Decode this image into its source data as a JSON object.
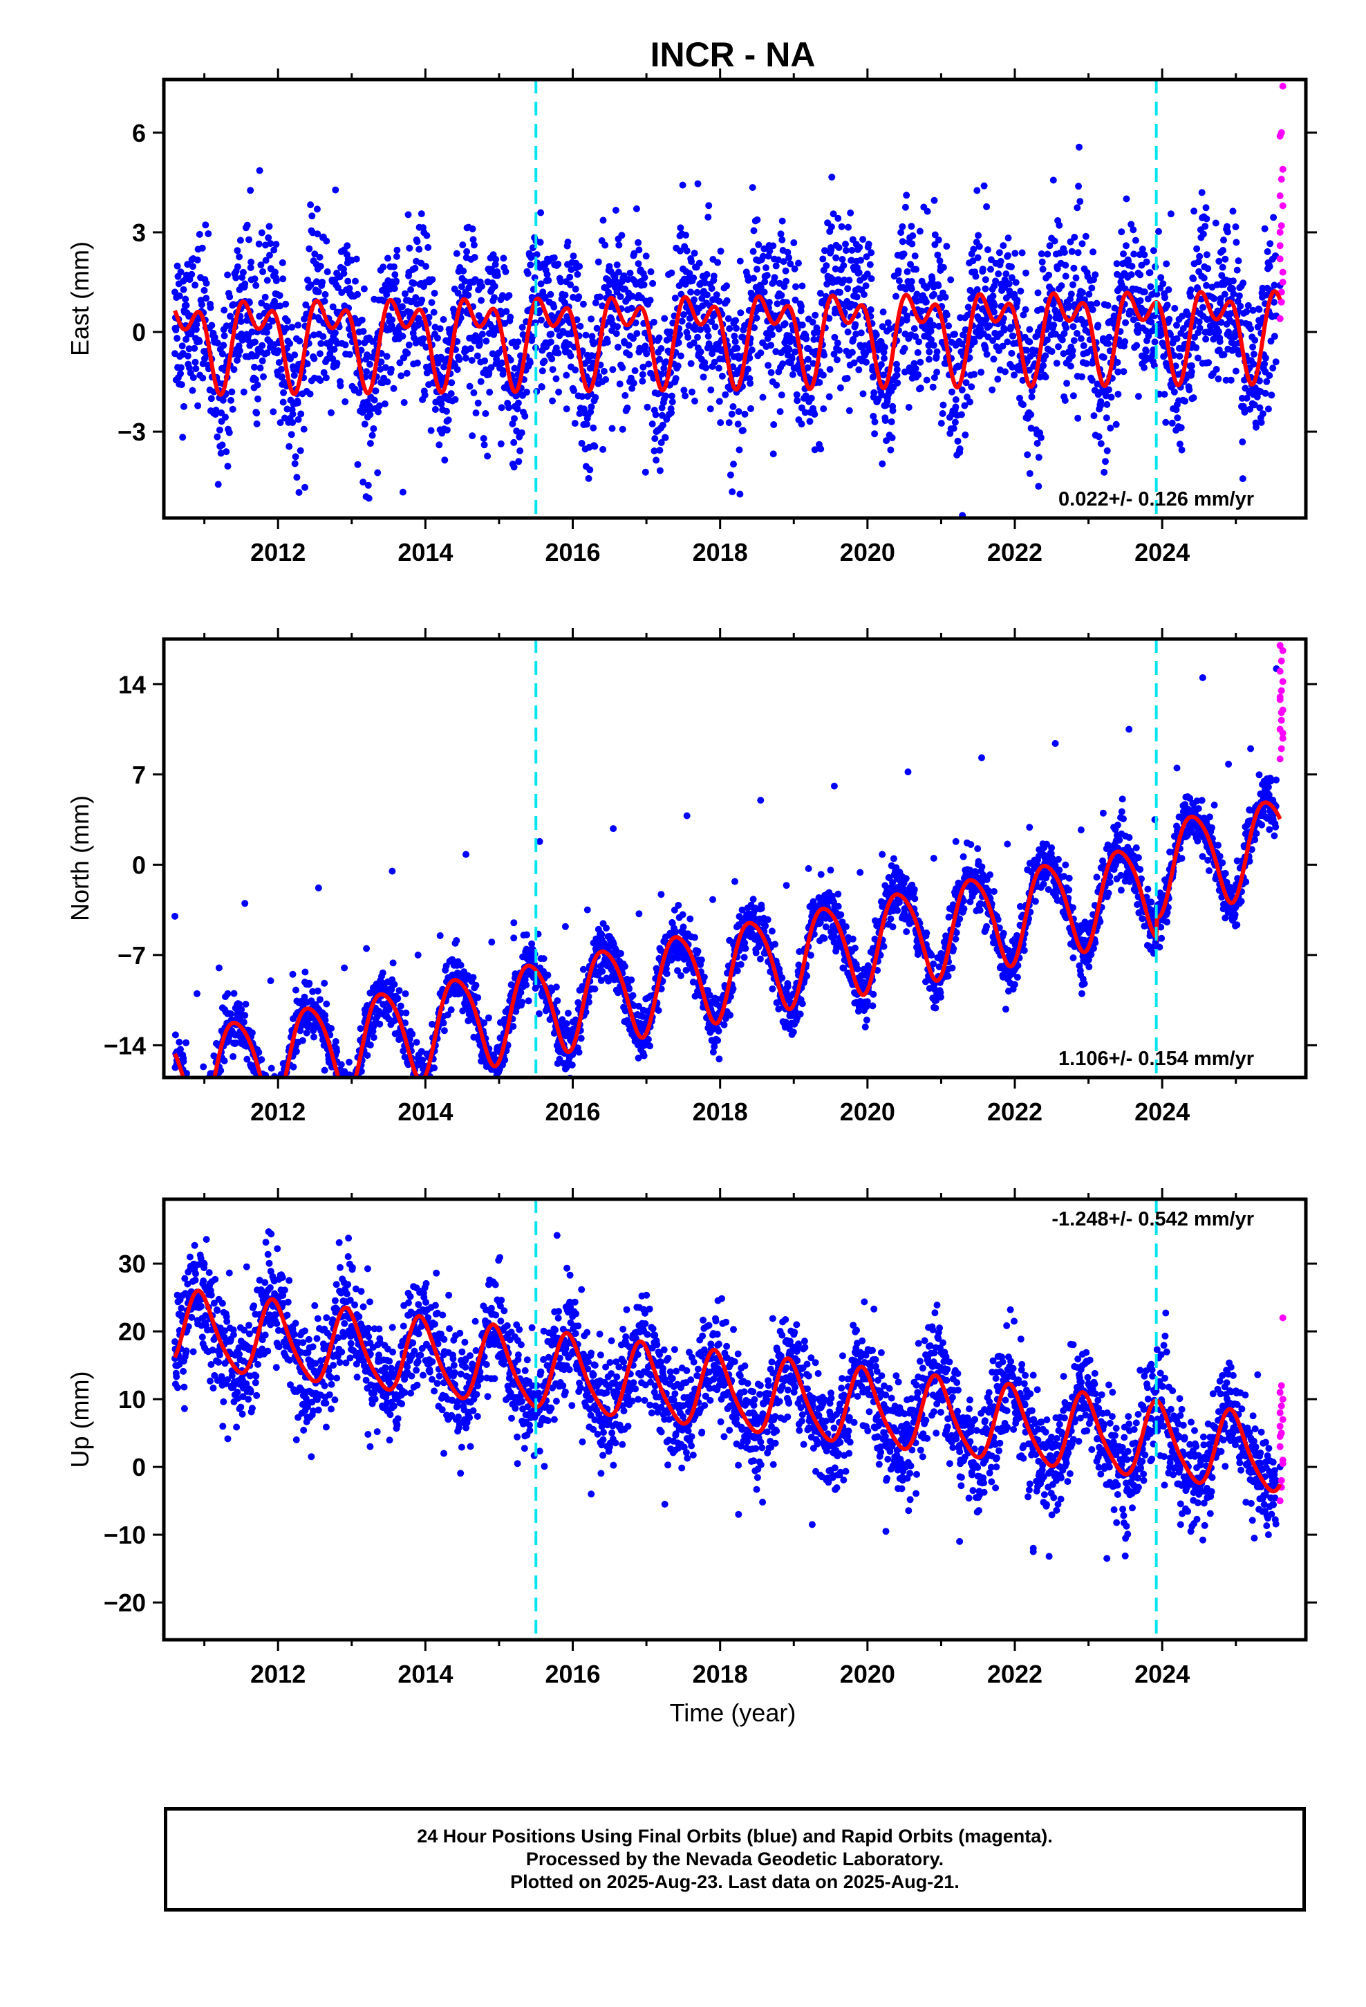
{
  "chart_data": {
    "title": "INCR - NA",
    "xlabel": "Time (year)",
    "x_range": [
      2010.45,
      2025.95
    ],
    "x_ticks": [
      2012,
      2014,
      2016,
      2018,
      2020,
      2022,
      2024
    ],
    "x_tick_labels": [
      "2012",
      "2014",
      "2016",
      "2018",
      "2020",
      "2022",
      "2024"
    ],
    "event_lines": [
      2015.5,
      2023.92
    ],
    "final_orbit_color": "#0000ff",
    "rapid_orbit_color": "#ff00ff",
    "model_color": "#ff0000",
    "event_line_color": "#00e5ee",
    "panels": [
      {
        "type": "scatter",
        "component": "east",
        "ylabel": "East (mm)",
        "ylim": [
          -5.6,
          7.6
        ],
        "yticks": [
          -3,
          0,
          3,
          6
        ],
        "ytick_labels": [
          "−3",
          "0",
          "3",
          "6"
        ],
        "rate_label": "0.022+/- 0.126 mm/yr",
        "rate_position": "bottom-right",
        "model": {
          "offset": 0.0,
          "rate": 0.022,
          "annual_amp": 1.0,
          "annual_phase": 0.45,
          "semiannual_amp": 0.75,
          "semiannual_phase": 0.35
        },
        "scatter_sd": 1.25,
        "rapid_values": [
          0.4,
          1.2,
          1.8,
          2.6,
          3.2,
          3.8,
          4.1,
          4.6,
          4.9,
          5.9,
          6.0,
          7.4,
          2.2,
          0.9,
          1.5,
          3.0
        ],
        "points": [
          [
            2010.6,
            1.2
          ],
          [
            2010.75,
            1.6
          ],
          [
            2010.9,
            -0.3
          ],
          [
            2011.1,
            0.2
          ],
          [
            2011.3,
            -1.0
          ],
          [
            2011.5,
            0.9
          ],
          [
            2011.7,
            1.4
          ],
          [
            2011.95,
            -0.6
          ],
          [
            2012.1,
            0.4
          ],
          [
            2012.3,
            -1.1
          ],
          [
            2012.6,
            1.5
          ],
          [
            2012.8,
            0.6
          ],
          [
            2013.1,
            0.0
          ],
          [
            2013.4,
            -0.9
          ],
          [
            2013.6,
            1.5
          ],
          [
            2013.9,
            0.2
          ],
          [
            2014.2,
            0.1
          ],
          [
            2014.4,
            -1.0
          ],
          [
            2014.6,
            1.5
          ],
          [
            2014.9,
            0.0
          ],
          [
            2015.2,
            -0.3
          ],
          [
            2015.4,
            -1.0
          ],
          [
            2015.6,
            1.1
          ],
          [
            2015.9,
            -0.5
          ],
          [
            2016.2,
            -0.7
          ],
          [
            2016.4,
            -1.5
          ],
          [
            2016.6,
            1.2
          ],
          [
            2016.9,
            -0.6
          ],
          [
            2017.2,
            -0.5
          ],
          [
            2017.4,
            -1.4
          ],
          [
            2017.6,
            1.2
          ],
          [
            2017.9,
            -0.5
          ],
          [
            2018.2,
            -0.5
          ],
          [
            2018.4,
            -1.4
          ],
          [
            2018.6,
            1.2
          ],
          [
            2018.9,
            -0.5
          ],
          [
            2019.2,
            -0.5
          ],
          [
            2019.4,
            -1.3
          ],
          [
            2019.6,
            1.2
          ],
          [
            2019.9,
            -0.4
          ],
          [
            2020.2,
            -0.4
          ],
          [
            2020.4,
            -1.3
          ],
          [
            2020.6,
            1.3
          ],
          [
            2020.9,
            -0.4
          ],
          [
            2021.2,
            -0.4
          ],
          [
            2021.4,
            -1.3
          ],
          [
            2021.6,
            1.3
          ],
          [
            2021.9,
            -0.3
          ],
          [
            2022.2,
            -0.3
          ],
          [
            2022.4,
            -1.3
          ],
          [
            2022.6,
            1.3
          ],
          [
            2022.9,
            -0.2
          ],
          [
            2023.2,
            -0.2
          ],
          [
            2023.4,
            -1.2
          ],
          [
            2023.6,
            1.3
          ],
          [
            2023.9,
            -0.3
          ],
          [
            2024.2,
            -0.2
          ],
          [
            2024.4,
            -1.2
          ],
          [
            2024.6,
            1.4
          ],
          [
            2024.9,
            0.0
          ],
          [
            2025.2,
            0.1
          ],
          [
            2025.4,
            -1.2
          ],
          [
            2025.6,
            1.4
          ]
        ]
      },
      {
        "type": "scatter",
        "component": "north",
        "ylabel": "North (mm)",
        "ylim": [
          -16.5,
          17.5
        ],
        "yticks": [
          -14,
          -7,
          0,
          7,
          14
        ],
        "ytick_labels": [
          "−14",
          "−7",
          "0",
          "7",
          "14"
        ],
        "rate_label": "1.106+/- 0.154 mm/yr",
        "rate_position": "bottom-right",
        "model": {
          "offset": -8.2,
          "rate": 1.106,
          "annual_amp": 3.6,
          "annual_phase": 0.18,
          "semiannual_amp": 0.5,
          "semiannual_phase": 0.1,
          "step_at": 2023.92,
          "step": 1.6
        },
        "scatter_sd": 1.1,
        "rapid_values": [
          8.2,
          9.0,
          9.8,
          10.5,
          11.2,
          12.0,
          12.8,
          13.5,
          14.2,
          15.0,
          15.8,
          16.6,
          17.0,
          11.8,
          10.2,
          13.0
        ],
        "points": [
          [
            2010.6,
            -4.0
          ],
          [
            2010.9,
            -10.0
          ],
          [
            2011.2,
            -8.0
          ],
          [
            2011.55,
            -3.0
          ],
          [
            2011.9,
            -9.0
          ],
          [
            2012.2,
            -8.5
          ],
          [
            2012.55,
            -1.8
          ],
          [
            2012.9,
            -8.0
          ],
          [
            2013.2,
            -6.5
          ],
          [
            2013.55,
            -0.5
          ],
          [
            2013.9,
            -7.0
          ],
          [
            2014.2,
            -5.5
          ],
          [
            2014.55,
            0.8
          ],
          [
            2014.9,
            -6.0
          ],
          [
            2015.2,
            -4.5
          ],
          [
            2015.55,
            1.8
          ],
          [
            2015.9,
            -4.8
          ],
          [
            2016.2,
            -3.5
          ],
          [
            2016.55,
            2.8
          ],
          [
            2016.9,
            -3.8
          ],
          [
            2017.2,
            -2.3
          ],
          [
            2017.55,
            3.8
          ],
          [
            2017.9,
            -2.7
          ],
          [
            2018.2,
            -1.3
          ],
          [
            2018.55,
            5.0
          ],
          [
            2018.9,
            -1.6
          ],
          [
            2019.2,
            -0.3
          ],
          [
            2019.55,
            6.1
          ],
          [
            2019.9,
            -0.6
          ],
          [
            2020.2,
            0.8
          ],
          [
            2020.55,
            7.2
          ],
          [
            2020.9,
            0.5
          ],
          [
            2021.2,
            1.8
          ],
          [
            2021.55,
            8.3
          ],
          [
            2021.9,
            1.6
          ],
          [
            2022.2,
            2.9
          ],
          [
            2022.55,
            9.4
          ],
          [
            2022.9,
            2.7
          ],
          [
            2023.2,
            4.0
          ],
          [
            2023.55,
            10.5
          ],
          [
            2023.9,
            3.5
          ],
          [
            2024.2,
            7.5
          ],
          [
            2024.55,
            14.5
          ],
          [
            2024.9,
            7.8
          ],
          [
            2025.2,
            9.0
          ],
          [
            2025.55,
            15.2
          ]
        ]
      },
      {
        "type": "scatter",
        "component": "up",
        "ylabel": "Up (mm)",
        "ylim": [
          -25.5,
          39.5
        ],
        "yticks": [
          -20,
          -10,
          0,
          10,
          20,
          30
        ],
        "ytick_labels": [
          "−20",
          "−10",
          "0",
          "10",
          "20",
          "30"
        ],
        "rate_label": "-1.248+/- 0.542 mm/yr",
        "rate_position": "top-right",
        "model": {
          "offset": 11.0,
          "rate": -1.248,
          "annual_amp": 5.5,
          "annual_phase": 0.7,
          "semiannual_amp": 0.9,
          "semiannual_phase": 0.25
        },
        "scatter_sd": 4.0,
        "rapid_values": [
          -5.0,
          -2.0,
          1.0,
          3.0,
          5.0,
          7.0,
          8.0,
          9.0,
          10.0,
          11.0,
          12.0,
          22.0,
          6.0,
          -3.0,
          0.5,
          4.5
        ],
        "points": [
          [
            2010.6,
            16.0
          ],
          [
            2010.85,
            17.0
          ],
          [
            2011.25,
            6.0
          ],
          [
            2011.75,
            16.5
          ],
          [
            2012.25,
            4.0
          ],
          [
            2012.75,
            15.0
          ],
          [
            2013.25,
            3.0
          ],
          [
            2013.75,
            14.0
          ],
          [
            2014.25,
            2.0
          ],
          [
            2014.75,
            13.0
          ],
          [
            2015.25,
            0.5
          ],
          [
            2015.75,
            7.0
          ],
          [
            2016.25,
            -4.0
          ],
          [
            2016.75,
            6.0
          ],
          [
            2017.25,
            -5.5
          ],
          [
            2017.75,
            5.0
          ],
          [
            2018.25,
            -7.0
          ],
          [
            2018.75,
            3.5
          ],
          [
            2019.25,
            -8.5
          ],
          [
            2019.75,
            2.0
          ],
          [
            2020.25,
            -9.5
          ],
          [
            2020.75,
            1.5
          ],
          [
            2021.25,
            -11.0
          ],
          [
            2021.75,
            0.0
          ],
          [
            2022.25,
            -12.0
          ],
          [
            2022.75,
            -1.0
          ],
          [
            2022.25,
            -12.5
          ],
          [
            2023.25,
            -13.5
          ],
          [
            2023.75,
            -2.0
          ],
          [
            2024.25,
            -8.5
          ],
          [
            2024.75,
            2.0
          ],
          [
            2025.25,
            -10.5
          ],
          [
            2025.6,
            0.0
          ]
        ]
      }
    ]
  },
  "footer": {
    "lines": [
      "24 Hour Positions Using Final Orbits (blue) and Rapid Orbits (magenta).",
      "Processed by the Nevada Geodetic Laboratory.",
      "Plotted on 2025-Aug-23. Last data on 2025-Aug-21."
    ]
  }
}
